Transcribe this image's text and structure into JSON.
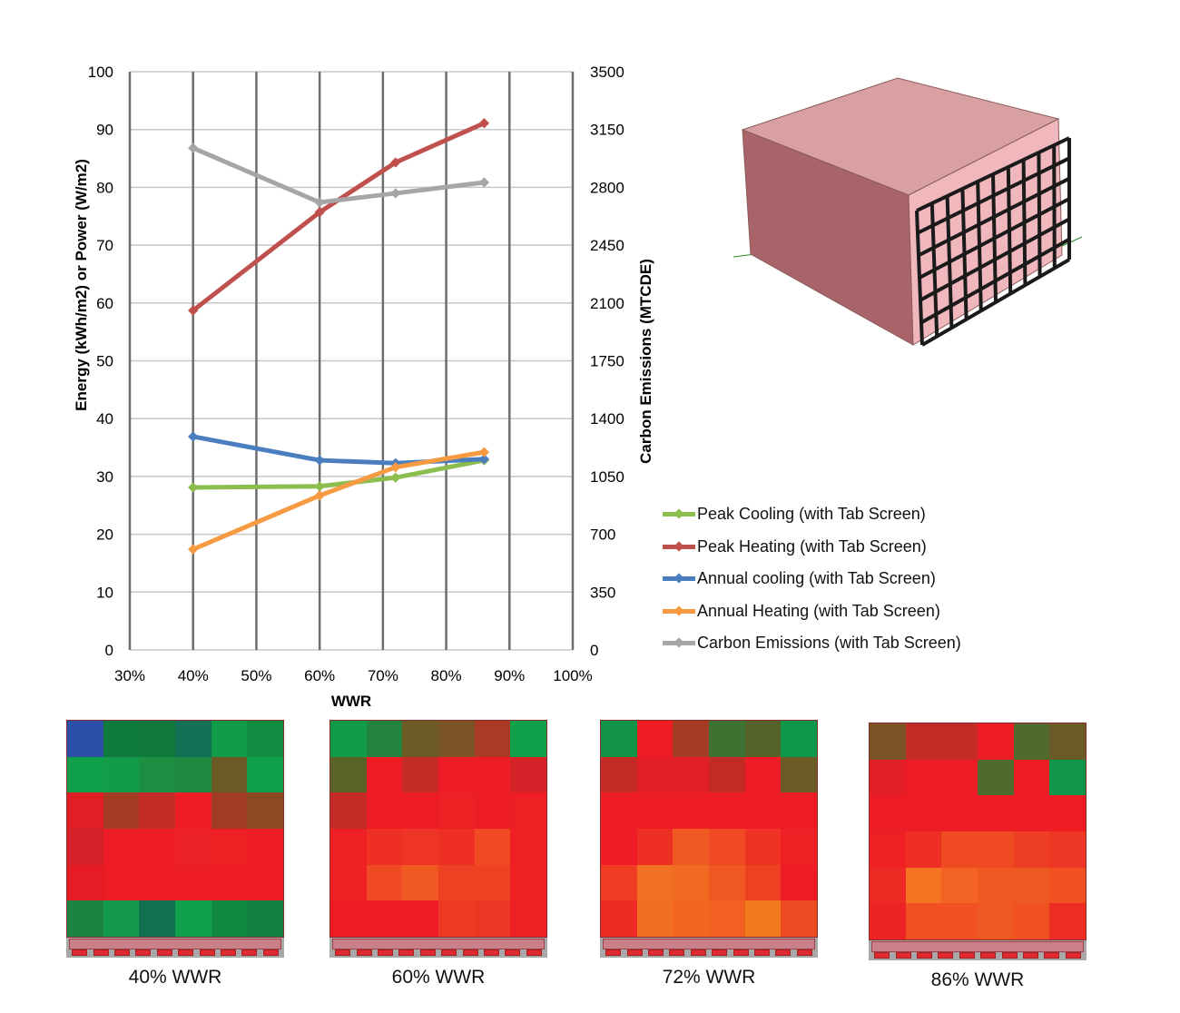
{
  "chart_data": {
    "type": "line",
    "xlabel": "WWR",
    "ylabel": "Energy (kWh/m2) or Power (W/m2)",
    "y2label": "Carbon Emissions (MTCDE)",
    "x_ticks": [
      "30%",
      "40%",
      "50%",
      "60%",
      "70%",
      "80%",
      "90%",
      "100%"
    ],
    "xlim": [
      30,
      100
    ],
    "ylim": [
      0,
      100
    ],
    "y_ticks": [
      0,
      10,
      20,
      30,
      40,
      50,
      60,
      70,
      80,
      90,
      100
    ],
    "y2lim": [
      0,
      3500
    ],
    "y2_ticks": [
      0,
      350,
      700,
      1050,
      1400,
      1750,
      2100,
      2450,
      2800,
      3150,
      3500
    ],
    "grid": true,
    "legend_position": "right",
    "x": [
      40,
      60,
      72,
      86
    ],
    "series": [
      {
        "name": "Peak Cooling (with Tab Screen)",
        "color": "#8cbd4f",
        "axis": "left",
        "values": [
          28.1,
          28.3,
          29.8,
          32.8
        ]
      },
      {
        "name": "Peak Heating (with Tab Screen)",
        "color": "#c0504d",
        "axis": "left",
        "values": [
          58.7,
          75.7,
          84.3,
          91.1
        ]
      },
      {
        "name": "Annual cooling (with Tab Screen)",
        "color": "#4a7ebf",
        "axis": "left",
        "values": [
          36.9,
          32.8,
          32.3,
          33.0
        ]
      },
      {
        "name": "Annual Heating (with Tab Screen)",
        "color": "#f79a42",
        "axis": "left",
        "values": [
          17.4,
          26.7,
          31.6,
          34.2
        ]
      },
      {
        "name": "Carbon Emissions (with Tab Screen)",
        "color": "#a6a6a6",
        "axis": "right",
        "values": [
          3038,
          2709,
          2764,
          2830
        ]
      }
    ]
  },
  "heatmaps": [
    {
      "label": "40% WWR",
      "cells": [
        [
          "#2c4fa8",
          "#0f7a3e",
          "#10793e",
          "#126e55",
          "#119a48",
          "#0f8c40"
        ],
        [
          "#11a04a",
          "#129b48",
          "#1c8f42",
          "#1f8a3f",
          "#6a5a26",
          "#10a04a"
        ],
        [
          "#e01e26",
          "#a33a24",
          "#c42a26",
          "#ee1c24",
          "#a03c22",
          "#8c4a22"
        ],
        [
          "#d42228",
          "#ee1c24",
          "#ee1c24",
          "#ec2226",
          "#ee2024",
          "#ee1c24"
        ],
        [
          "#e61c24",
          "#ee1c24",
          "#ee1c24",
          "#ee1c24",
          "#ee1c24",
          "#ee1c24"
        ],
        [
          "#1a8540",
          "#139a4a",
          "#107050",
          "#11a04a",
          "#0f8a40",
          "#0f8040"
        ]
      ]
    },
    {
      "label": "60% WWR",
      "cells": [
        [
          "#119a48",
          "#23833f",
          "#6e5a24",
          "#7a5424",
          "#a93a26",
          "#10a04a"
        ],
        [
          "#5a6228",
          "#ee1c24",
          "#c42a26",
          "#ee1c24",
          "#ee1c24",
          "#d42228"
        ],
        [
          "#c42a26",
          "#ee1c24",
          "#ee1c24",
          "#ee2024",
          "#ee1c24",
          "#ee2024"
        ],
        [
          "#ee2024",
          "#ee3024",
          "#ee3424",
          "#ee3024",
          "#f04a22",
          "#ee2024"
        ],
        [
          "#ee2024",
          "#f04a22",
          "#f05a22",
          "#ee4022",
          "#ee4022",
          "#ee2024"
        ],
        [
          "#ee1c24",
          "#ee1c24",
          "#ee1c24",
          "#ee3a22",
          "#ee3624",
          "#ee2024"
        ]
      ]
    },
    {
      "label": "72% WWR",
      "cells": [
        [
          "#119448",
          "#ee1c24",
          "#a43c24",
          "#3e7232",
          "#556228",
          "#10984a"
        ],
        [
          "#c42a26",
          "#e21e26",
          "#e21e26",
          "#c22a26",
          "#ee1c24",
          "#6a5a26"
        ],
        [
          "#ee1c24",
          "#ee1c24",
          "#ee1c24",
          "#ee1c24",
          "#ee1c24",
          "#ee1c24"
        ],
        [
          "#ee1c24",
          "#ee3024",
          "#f05a22",
          "#f04a22",
          "#ee3224",
          "#ee2024"
        ],
        [
          "#f03c22",
          "#f27022",
          "#f26a22",
          "#f05822",
          "#ee4022",
          "#ee1c24"
        ],
        [
          "#ee2a24",
          "#f26e22",
          "#f26622",
          "#f26022",
          "#f47a20",
          "#ee4a22"
        ]
      ]
    },
    {
      "label": "86% WWR",
      "cells": [
        [
          "#7a5424",
          "#c42a26",
          "#c42a26",
          "#ee1c24",
          "#4e6a2c",
          "#6a5a26"
        ],
        [
          "#e41e26",
          "#ee1c24",
          "#ee1c24",
          "#4e6a2c",
          "#ee1c24",
          "#10964a"
        ],
        [
          "#ee1c24",
          "#ee1c24",
          "#ee1c24",
          "#ee1c24",
          "#ee1c24",
          "#ee1c24"
        ],
        [
          "#ee2024",
          "#ee3024",
          "#f04a22",
          "#f04a22",
          "#ee3e24",
          "#ee3624"
        ],
        [
          "#ee2a24",
          "#f47222",
          "#f26222",
          "#f05a22",
          "#f05822",
          "#f05022"
        ],
        [
          "#ee2424",
          "#f05022",
          "#f05022",
          "#f05822",
          "#f05022",
          "#ee2e24"
        ]
      ]
    }
  ]
}
